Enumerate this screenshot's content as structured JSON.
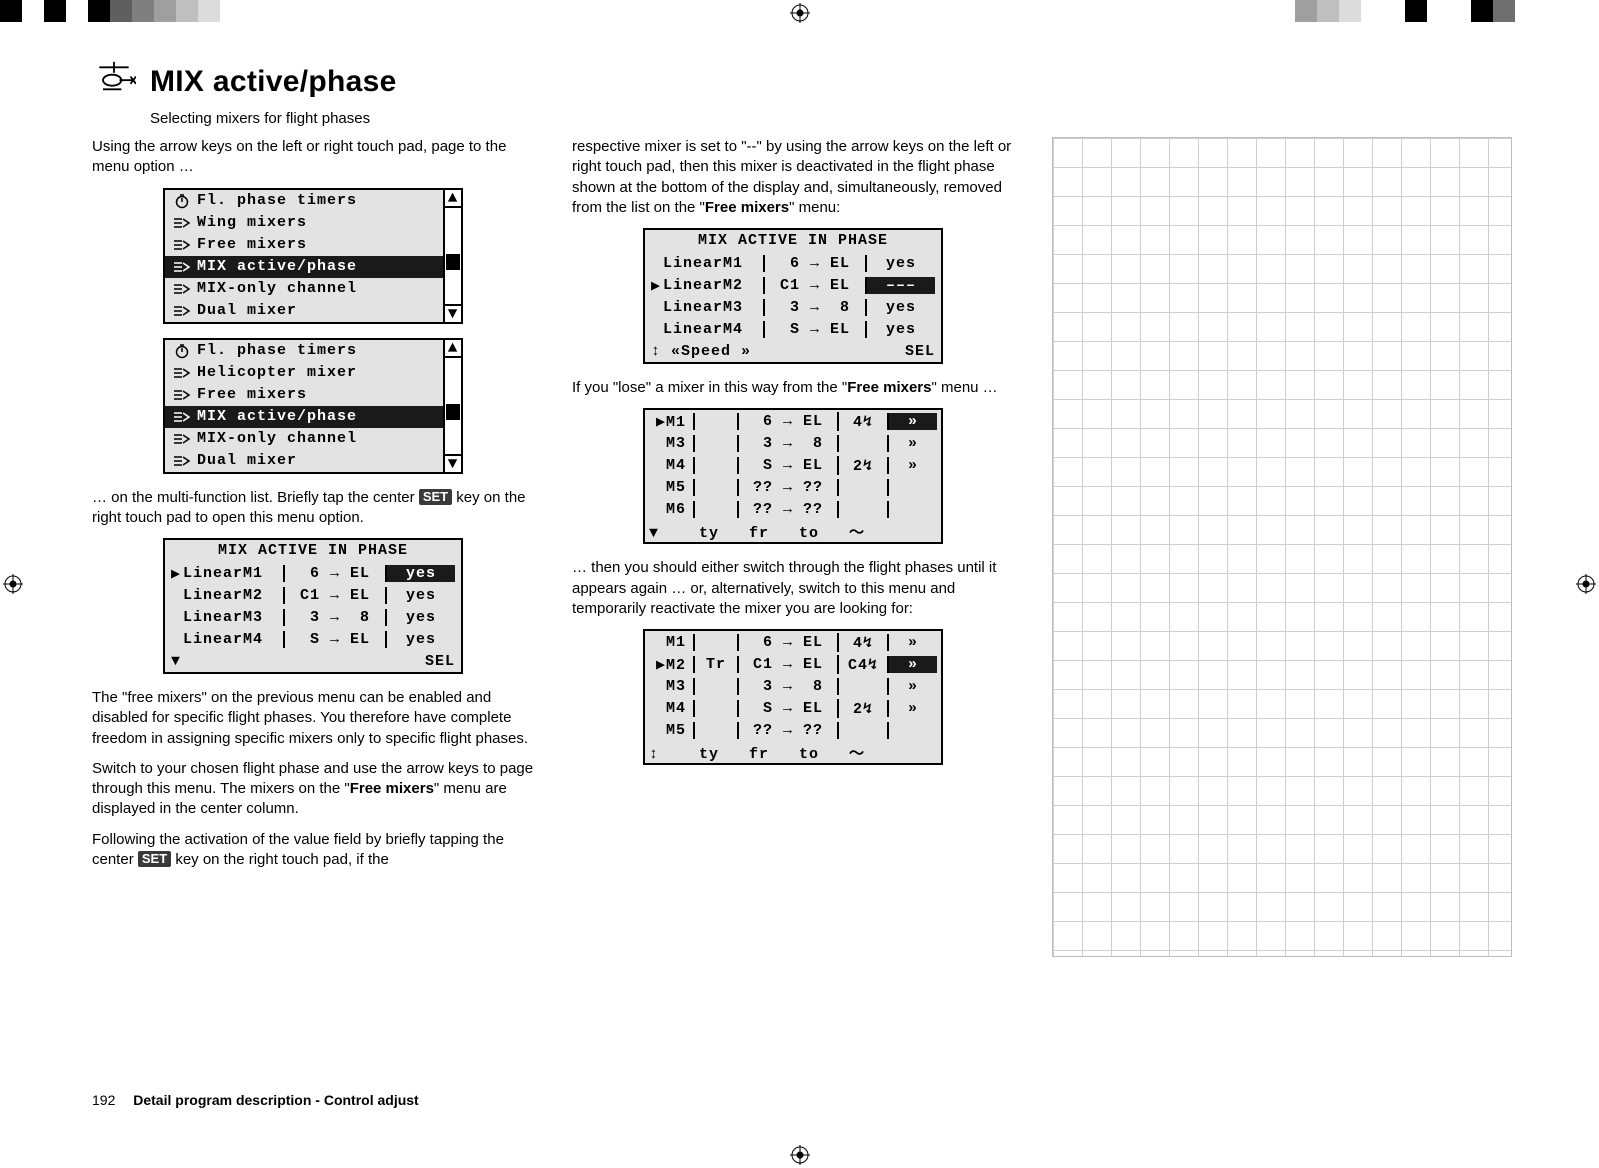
{
  "title": "MIX active/phase",
  "subtitle": "Selecting mixers for flight phases",
  "page_number": "192",
  "footer_section": "Detail program description - Control adjust",
  "para1": "Using the arrow keys on the left or right touch pad, page to the menu option …",
  "para2a": "… on the multi-function list. Briefly tap the center ",
  "para2b": " key on the right touch pad to open this menu option.",
  "para3": "The \"free mixers\" on the previous menu can be enabled and disabled for specific flight phases. You therefore have complete freedom in assigning specific mixers only to specific flight phases.",
  "para4a": "Switch to your chosen flight phase and use the arrow keys to page through this menu. The mixers on the \"",
  "para4b": "\" menu are displayed in the center column.",
  "para5a": "Following the activation of the value field by briefly tapping the center ",
  "para5b": " key on the right touch pad, if the",
  "col2_p1a": "respective mixer is set to \"--\" by using the arrow keys on the left or right touch pad, then this mixer is deactivated in the flight phase shown at the bottom of the display and, simultaneously, removed from the list on the \"",
  "col2_p1b": "\" menu:",
  "col2_p2a": "If you \"lose\" a mixer in this way from the \"",
  "col2_p2b": "\" menu …",
  "col2_p3": "… then you should either switch through the flight phases until it appears again … or, alternatively, switch to this menu and temporarily reactivate the mixer you are looking for:",
  "free_mixers_label": "Free mixers",
  "set_label": "SET",
  "menu1": {
    "items": [
      {
        "icon": "timer",
        "label": "Fl. phase timers",
        "hi": false
      },
      {
        "icon": "mix",
        "label": "Wing mixers",
        "hi": false
      },
      {
        "icon": "mix",
        "label": "Free mixers",
        "hi": false
      },
      {
        "icon": "mix",
        "label": "MIX active/phase",
        "hi": true
      },
      {
        "icon": "mix",
        "label": "MIX-only channel",
        "hi": false
      },
      {
        "icon": "mix",
        "label": "Dual mixer",
        "hi": false
      }
    ],
    "thumb_pct": 48
  },
  "menu2": {
    "items": [
      {
        "icon": "timer",
        "label": "Fl. phase timers",
        "hi": false
      },
      {
        "icon": "mix",
        "label": "Helicopter mixer",
        "hi": false
      },
      {
        "icon": "mix",
        "label": "Free mixers",
        "hi": false
      },
      {
        "icon": "mix",
        "label": "MIX active/phase",
        "hi": true
      },
      {
        "icon": "mix",
        "label": "MIX-only channel",
        "hi": false
      },
      {
        "icon": "mix",
        "label": "Dual mixer",
        "hi": false
      }
    ],
    "thumb_pct": 48
  },
  "mix1": {
    "header": "MIX ACTIVE IN PHASE",
    "rows": [
      {
        "cur": "▶",
        "name": "LinearM1",
        "map": " 6 → EL",
        "val": "yes",
        "val_hi": true
      },
      {
        "cur": " ",
        "name": "LinearM2",
        "map": "C1 → EL",
        "val": "yes",
        "val_hi": false
      },
      {
        "cur": " ",
        "name": "LinearM3",
        "map": " 3 →  8",
        "val": "yes",
        "val_hi": false
      },
      {
        "cur": " ",
        "name": "LinearM4",
        "map": " S → EL",
        "val": "yes",
        "val_hi": false
      }
    ],
    "footer_left": "▼",
    "footer_right": "SEL"
  },
  "mix2": {
    "header": "MIX ACTIVE IN PHASE",
    "rows": [
      {
        "cur": " ",
        "name": "LinearM1",
        "map": " 6 → EL",
        "val": "yes",
        "val_hi": false
      },
      {
        "cur": "▶",
        "name": "LinearM2",
        "map": "C1 → EL",
        "val": "–––",
        "val_hi": true
      },
      {
        "cur": " ",
        "name": "LinearM3",
        "map": " 3 →  8",
        "val": "yes",
        "val_hi": false
      },
      {
        "cur": " ",
        "name": "LinearM4",
        "map": " S → EL",
        "val": "yes",
        "val_hi": false
      }
    ],
    "footer_left": "↕ «Speed »",
    "footer_right": "SEL"
  },
  "free1": {
    "rows": [
      {
        "cur": "▶",
        "m": "M1",
        "ty": "  ",
        "map": " 6 → EL",
        "sw": "4↯",
        "go": "»",
        "go_hi": true
      },
      {
        "cur": " ",
        "m": "M3",
        "ty": "  ",
        "map": " 3 →  8",
        "sw": "  ",
        "go": "»",
        "go_hi": false
      },
      {
        "cur": " ",
        "m": "M4",
        "ty": "  ",
        "map": " S → EL",
        "sw": "2↯",
        "go": "»",
        "go_hi": false
      },
      {
        "cur": " ",
        "m": "M5",
        "ty": "  ",
        "map": "?? → ??",
        "sw": "  ",
        "go": " ",
        "go_hi": false
      },
      {
        "cur": " ",
        "m": "M6",
        "ty": "  ",
        "map": "?? → ??",
        "sw": "  ",
        "go": " ",
        "go_hi": false
      }
    ],
    "footer": "▼    ty   fr   to   〜"
  },
  "free2": {
    "rows": [
      {
        "cur": " ",
        "m": "M1",
        "ty": "  ",
        "map": " 6 → EL",
        "sw": "4↯",
        "go": "»",
        "go_hi": false
      },
      {
        "cur": "▶",
        "m": "M2",
        "ty": "Tr",
        "map": "C1 → EL",
        "sw": "C4↯",
        "go": "»",
        "go_hi": true
      },
      {
        "cur": " ",
        "m": "M3",
        "ty": "  ",
        "map": " 3 →  8",
        "sw": "  ",
        "go": "»",
        "go_hi": false
      },
      {
        "cur": " ",
        "m": "M4",
        "ty": "  ",
        "map": " S → EL",
        "sw": "2↯",
        "go": "»",
        "go_hi": false
      },
      {
        "cur": " ",
        "m": "M5",
        "ty": "  ",
        "map": "?? → ??",
        "sw": "  ",
        "go": " ",
        "go_hi": false
      }
    ],
    "footer": "↕    ty   fr   to   〜"
  },
  "swatches_left": [
    "#000000",
    "#ffffff",
    "#000000",
    "#ffffff",
    "#000000",
    "#5f5f5f",
    "#7f7f7f",
    "#9f9f9f",
    "#bfbfbf",
    "#dcdcdc",
    "#ffffff",
    "#ffffff"
  ],
  "swatches_right": [
    "#9f9f9f",
    "#bfbfbf",
    "#dcdcdc",
    "#ffffff",
    "#ffffff",
    "#000000",
    "#ffffff",
    "#ffffff",
    "#000000",
    "#6f6f6f",
    "#ffffff",
    "#ffffff"
  ]
}
